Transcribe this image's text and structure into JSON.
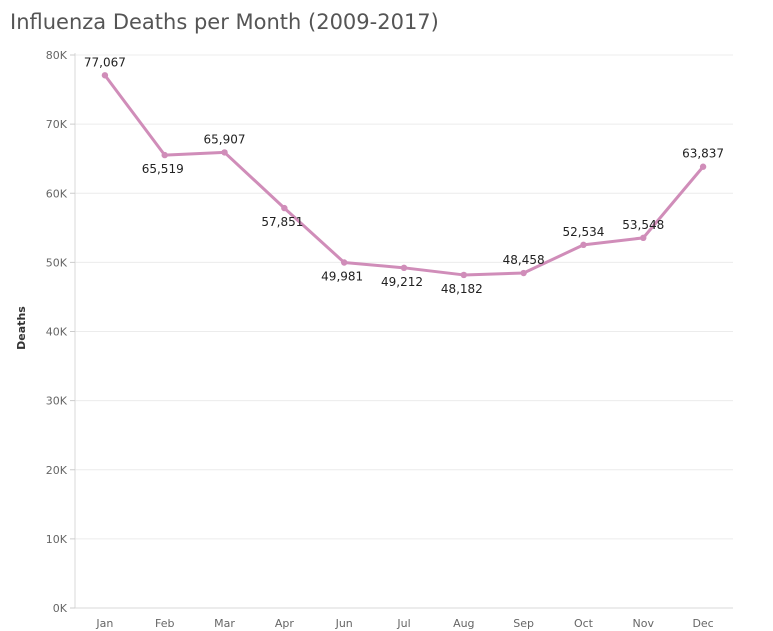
{
  "chart_data": {
    "type": "line",
    "title": "Influenza Deaths per Month (2009-2017)",
    "xlabel": "",
    "ylabel": "Deaths",
    "categories": [
      "Jan",
      "Feb",
      "Mar",
      "Apr",
      "Jun",
      "Jul",
      "Aug",
      "Sep",
      "Oct",
      "Nov",
      "Dec"
    ],
    "series": [
      {
        "values": [
          77067,
          65519,
          65907,
          57851,
          49981,
          49212,
          48182,
          48458,
          52534,
          53548,
          63837
        ],
        "data_labels": [
          "77,067",
          "65,519",
          "65,907",
          "57,851",
          "49,981",
          "49,212",
          "48,182",
          "48,458",
          "52,534",
          "53,548",
          "63,837"
        ],
        "color": "#d08db9"
      }
    ],
    "yticks": [
      0,
      10000,
      20000,
      30000,
      40000,
      50000,
      60000,
      70000,
      80000
    ],
    "ytick_labels": [
      "0K",
      "10K",
      "20K",
      "30K",
      "40K",
      "50K",
      "60K",
      "70K",
      "80K"
    ],
    "ylim": [
      0,
      80000
    ],
    "grid": true,
    "legend": "none"
  }
}
